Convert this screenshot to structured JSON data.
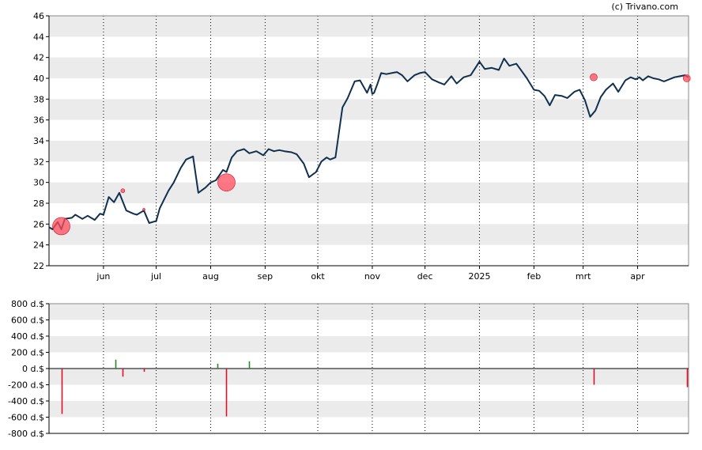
{
  "copyright": "(c) Trivano.com",
  "colors": {
    "price_line": "#10304f",
    "band": "#ebebeb",
    "marker": "#ff4d5e",
    "buy": "#2a8a2a",
    "sell": "#e0102a",
    "axis": "#000000",
    "vgrid": "#000000"
  },
  "chart_data": [
    {
      "type": "line",
      "title": "",
      "xlabel": "",
      "ylabel": "",
      "ylim": [
        22,
        46
      ],
      "y_ticks": [
        "46",
        "44",
        "42",
        "40",
        "38",
        "36",
        "34",
        "32",
        "30",
        "28",
        "26",
        "24",
        "22"
      ],
      "x_ticks": [
        {
          "label": "jun",
          "x": "2024-06-01"
        },
        {
          "label": "jul",
          "x": "2024-07-01"
        },
        {
          "label": "aug",
          "x": "2024-08-01"
        },
        {
          "label": "sep",
          "x": "2024-09-01"
        },
        {
          "label": "okt",
          "x": "2024-10-01"
        },
        {
          "label": "nov",
          "x": "2024-11-01"
        },
        {
          "label": "dec",
          "x": "2024-12-01"
        },
        {
          "label": "2025",
          "x": "2025-01-01"
        },
        {
          "label": "feb",
          "x": "2025-02-01"
        },
        {
          "label": "mrt",
          "x": "2025-03-01"
        },
        {
          "label": "apr",
          "x": "2025-04-01"
        }
      ],
      "xlim": [
        "2024-05-01",
        "2025-04-30"
      ],
      "grid": "alternating horizontal bands, dotted monthly verticals",
      "series": [
        {
          "x": [
            "2024-05-01",
            "2024-05-03",
            "2024-05-06",
            "2024-05-08",
            "2024-05-10",
            "2024-05-14",
            "2024-05-16",
            "2024-05-20",
            "2024-05-23",
            "2024-05-27",
            "2024-05-30",
            "2024-06-01",
            "2024-06-04",
            "2024-06-07",
            "2024-06-10",
            "2024-06-14",
            "2024-06-18",
            "2024-06-20",
            "2024-06-24",
            "2024-06-27",
            "2024-07-01",
            "2024-07-03",
            "2024-07-05",
            "2024-07-08",
            "2024-07-11",
            "2024-07-15",
            "2024-07-18",
            "2024-07-22",
            "2024-07-25",
            "2024-07-29",
            "2024-08-01",
            "2024-08-04",
            "2024-08-06",
            "2024-08-08",
            "2024-08-10",
            "2024-08-13",
            "2024-08-16",
            "2024-08-20",
            "2024-08-23",
            "2024-08-27",
            "2024-08-31",
            "2024-09-03",
            "2024-09-06",
            "2024-09-09",
            "2024-09-12",
            "2024-09-16",
            "2024-09-19",
            "2024-09-23",
            "2024-09-26",
            "2024-09-30",
            "2024-10-03",
            "2024-10-06",
            "2024-10-08",
            "2024-10-11",
            "2024-10-15",
            "2024-10-18",
            "2024-10-22",
            "2024-10-25",
            "2024-10-29",
            "2024-10-31",
            "2024-11-01",
            "2024-11-02",
            "2024-11-04",
            "2024-11-06",
            "2024-11-09",
            "2024-11-12",
            "2024-11-15",
            "2024-11-18",
            "2024-11-21",
            "2024-11-25",
            "2024-11-28",
            "2024-12-01",
            "2024-12-05",
            "2024-12-09",
            "2024-12-12",
            "2024-12-16",
            "2024-12-19",
            "2024-12-23",
            "2024-12-27",
            "2025-01-01",
            "2025-01-04",
            "2025-01-08",
            "2025-01-12",
            "2025-01-15",
            "2025-01-18",
            "2025-01-22",
            "2025-01-25",
            "2025-01-28",
            "2025-02-01",
            "2025-02-04",
            "2025-02-07",
            "2025-02-10",
            "2025-02-13",
            "2025-02-17",
            "2025-02-20",
            "2025-02-24",
            "2025-02-27",
            "2025-03-02",
            "2025-03-05",
            "2025-03-08",
            "2025-03-11",
            "2025-03-14",
            "2025-03-18",
            "2025-03-21",
            "2025-03-25",
            "2025-03-28",
            "2025-03-31",
            "2025-04-02",
            "2025-04-04",
            "2025-04-07",
            "2025-04-10",
            "2025-04-13",
            "2025-04-16",
            "2025-04-19",
            "2025-04-22",
            "2025-04-25",
            "2025-04-28",
            "2025-04-30"
          ],
          "values": [
            25.7,
            25.5,
            26.2,
            25.5,
            26.5,
            26.6,
            26.9,
            26.5,
            26.8,
            26.4,
            27.0,
            26.9,
            28.6,
            28.1,
            29.0,
            27.3,
            27.0,
            26.9,
            27.3,
            26.1,
            26.3,
            27.5,
            28.2,
            29.2,
            30.0,
            31.4,
            32.2,
            32.5,
            29.0,
            29.5,
            30.0,
            30.2,
            30.7,
            31.2,
            31.0,
            32.4,
            33.0,
            33.2,
            32.8,
            33.0,
            32.6,
            33.2,
            33.0,
            33.1,
            33.0,
            32.9,
            32.7,
            31.8,
            30.5,
            31.0,
            32.0,
            32.4,
            32.2,
            32.4,
            37.2,
            38.1,
            39.7,
            39.8,
            38.6,
            39.4,
            38.5,
            38.6,
            39.5,
            40.5,
            40.4,
            40.5,
            40.6,
            40.3,
            39.7,
            40.3,
            40.5,
            40.6,
            39.9,
            39.6,
            39.4,
            40.2,
            39.5,
            40.1,
            40.3,
            41.6,
            40.9,
            41.0,
            40.8,
            41.9,
            41.2,
            41.4,
            40.7,
            40.0,
            38.9,
            38.8,
            38.3,
            37.4,
            38.4,
            38.3,
            38.1,
            38.7,
            38.9,
            37.9,
            36.3,
            36.9,
            38.2,
            38.9,
            39.5,
            38.7,
            39.8,
            40.1,
            39.9,
            40.1,
            39.8,
            40.2,
            40.0,
            39.9,
            39.7,
            39.9,
            40.1,
            40.2,
            40.3,
            40.1
          ]
        }
      ],
      "markers": [
        {
          "x": "2024-05-08",
          "y": 25.8,
          "size": "large"
        },
        {
          "x": "2024-06-12",
          "y": 29.2,
          "size": "small"
        },
        {
          "x": "2024-06-24",
          "y": 27.4,
          "size": "tiny"
        },
        {
          "x": "2024-08-10",
          "y": 30.0,
          "size": "large"
        },
        {
          "x": "2025-03-07",
          "y": 40.1,
          "size": "medium"
        },
        {
          "x": "2025-04-29",
          "y": 40.0,
          "size": "medium"
        }
      ]
    },
    {
      "type": "bar",
      "title": "",
      "xlabel": "",
      "ylabel": "",
      "ylim": [
        -800,
        800
      ],
      "y_ticks": [
        "800 d.$",
        "600 d.$",
        "400 d.$",
        "200 d.$",
        "0 d.$",
        "-200 d.$",
        "-400 d.$",
        "-600 d.$",
        "-800 d.$"
      ],
      "values": [
        {
          "x": "2024-05-08",
          "value": -560
        },
        {
          "x": "2024-06-08",
          "value": 110
        },
        {
          "x": "2024-06-12",
          "value": -100
        },
        {
          "x": "2024-06-24",
          "value": -40
        },
        {
          "x": "2024-08-05",
          "value": 60
        },
        {
          "x": "2024-08-10",
          "value": -590
        },
        {
          "x": "2024-08-23",
          "value": 90
        },
        {
          "x": "2025-03-07",
          "value": -200
        },
        {
          "x": "2025-04-29",
          "value": -230
        }
      ]
    }
  ]
}
